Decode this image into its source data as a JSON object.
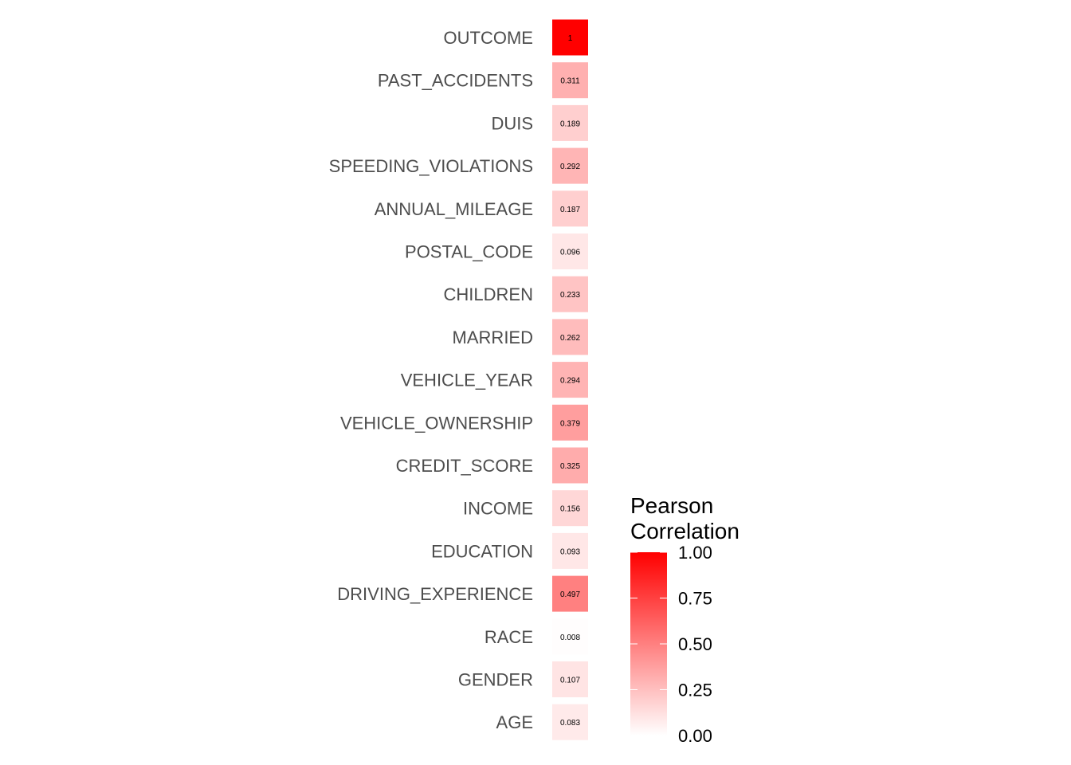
{
  "chart_data": {
    "type": "heatmap",
    "title": "",
    "xlabel": "",
    "ylabel": "",
    "rows": [
      "OUTCOME",
      "PAST_ACCIDENTS",
      "DUIS",
      "SPEEDING_VIOLATIONS",
      "ANNUAL_MILEAGE",
      "POSTAL_CODE",
      "CHILDREN",
      "MARRIED",
      "VEHICLE_YEAR",
      "VEHICLE_OWNERSHIP",
      "CREDIT_SCORE",
      "INCOME",
      "EDUCATION",
      "DRIVING_EXPERIENCE",
      "RACE",
      "GENDER",
      "AGE"
    ],
    "values": [
      1,
      0.311,
      0.189,
      0.292,
      0.187,
      0.096,
      0.233,
      0.262,
      0.294,
      0.379,
      0.325,
      0.156,
      0.093,
      0.497,
      0.008,
      0.107,
      0.083
    ],
    "value_labels": [
      "1",
      "0.311",
      "0.189",
      "0.292",
      "0.187",
      "0.096",
      "0.233",
      "0.262",
      "0.294",
      "0.379",
      "0.325",
      "0.156",
      "0.093",
      "0.497",
      "0.008",
      "0.107",
      "0.083"
    ],
    "legend": {
      "title_lines": [
        "Pearson",
        "Correlation"
      ],
      "ticks": [
        1.0,
        0.75,
        0.5,
        0.25,
        0.0
      ],
      "tick_labels": [
        "1.00",
        "0.75",
        "0.50",
        "0.25",
        "0.00"
      ],
      "range": [
        0,
        1
      ],
      "placement": "right"
    },
    "colors": {
      "low": "#ffffff",
      "high": "#ff0000"
    },
    "grid": false
  }
}
